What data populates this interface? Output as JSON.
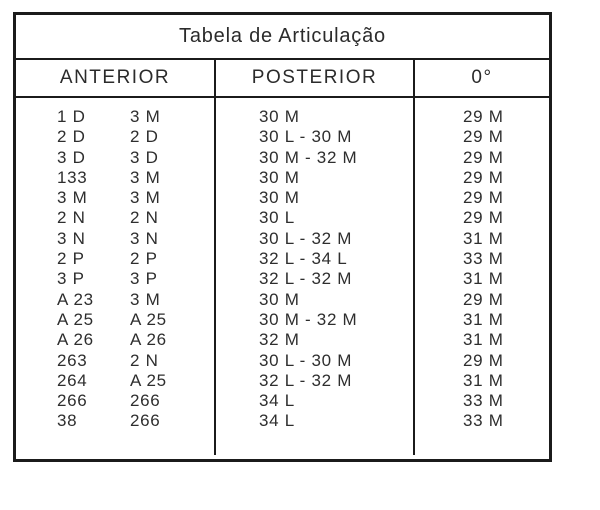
{
  "title": "Tabela de Articulação",
  "columns": [
    {
      "label": "ANTERIOR"
    },
    {
      "label": "POSTERIOR"
    },
    {
      "label": "0°"
    }
  ],
  "rows": [
    {
      "anterior_1": "1 D",
      "anterior_2": "3 M",
      "posterior": "30 M",
      "zero": "29 M"
    },
    {
      "anterior_1": "2 D",
      "anterior_2": "2 D",
      "posterior": "30 L - 30 M",
      "zero": "29 M"
    },
    {
      "anterior_1": "3 D",
      "anterior_2": "3 D",
      "posterior": "30 M - 32 M",
      "zero": "29 M"
    },
    {
      "anterior_1": "133",
      "anterior_2": "3 M",
      "posterior": "30 M",
      "zero": "29 M"
    },
    {
      "anterior_1": "3 M",
      "anterior_2": "3 M",
      "posterior": "30 M",
      "zero": "29 M"
    },
    {
      "anterior_1": "2 N",
      "anterior_2": "2 N",
      "posterior": "30 L",
      "zero": "29 M"
    },
    {
      "anterior_1": "3 N",
      "anterior_2": "3 N",
      "posterior": "30 L - 32 M",
      "zero": "31 M"
    },
    {
      "anterior_1": "2 P",
      "anterior_2": "2 P",
      "posterior": "32 L - 34 L",
      "zero": "33 M"
    },
    {
      "anterior_1": "3 P",
      "anterior_2": "3 P",
      "posterior": "32 L - 32 M",
      "zero": "31 M"
    },
    {
      "anterior_1": "A 23",
      "anterior_2": "3 M",
      "posterior": "30 M",
      "zero": "29 M"
    },
    {
      "anterior_1": "A 25",
      "anterior_2": "A 25",
      "posterior": "30 M - 32 M",
      "zero": "31 M"
    },
    {
      "anterior_1": "A 26",
      "anterior_2": "A 26",
      "posterior": "32 M",
      "zero": "31 M"
    },
    {
      "anterior_1": "263",
      "anterior_2": "2 N",
      "posterior": "30 L - 30 M",
      "zero": "29 M"
    },
    {
      "anterior_1": "264",
      "anterior_2": "A 25",
      "posterior": "32 L - 32 M",
      "zero": "31 M"
    },
    {
      "anterior_1": "266",
      "anterior_2": "266",
      "posterior": "34 L",
      "zero": "33 M"
    },
    {
      "anterior_1": "38",
      "anterior_2": "266",
      "posterior": "34 L",
      "zero": "33 M"
    }
  ]
}
